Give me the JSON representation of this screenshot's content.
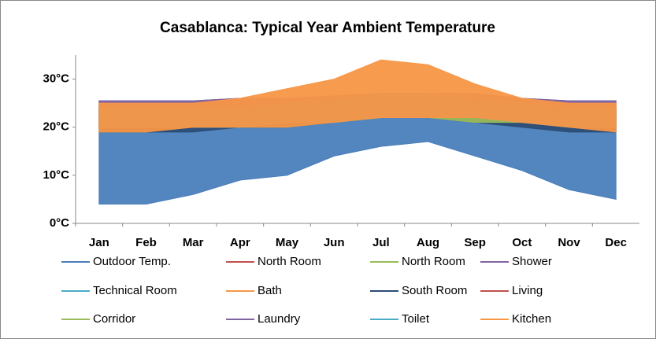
{
  "chart_data": {
    "type": "range",
    "title": "Casablanca: Typical Year Ambient Temperature",
    "categories": [
      "Jan",
      "Feb",
      "Mar",
      "Apr",
      "May",
      "Jun",
      "Jul",
      "Aug",
      "Sep",
      "Oct",
      "Nov",
      "Dec"
    ],
    "ylim": [
      0,
      35
    ],
    "yticks": [
      {
        "value": 0,
        "label": "0°C"
      },
      {
        "value": 10,
        "label": "10°C"
      },
      {
        "value": 20,
        "label": "20°C"
      },
      {
        "value": 30,
        "label": "30°C"
      }
    ],
    "series": [
      {
        "name": "Outdoor Temp.",
        "color": "#4a7ebb",
        "low": [
          4,
          4,
          6,
          9,
          10,
          14,
          16,
          17,
          14,
          11,
          7,
          5
        ],
        "high": [
          21,
          21,
          22,
          21,
          23,
          24,
          26,
          26,
          25,
          23,
          21,
          21
        ]
      },
      {
        "name": "North Room",
        "color": "#c0504d",
        "low": [
          20,
          20,
          20,
          20,
          21,
          22,
          23,
          23,
          22,
          21,
          20,
          20
        ],
        "high": [
          24,
          24,
          24,
          24,
          25,
          26,
          27,
          27,
          26,
          25,
          24,
          24
        ]
      },
      {
        "name": "North Room",
        "color": "#9bbb59",
        "low": [
          20,
          20,
          20,
          20,
          21,
          21,
          22,
          22,
          22,
          21,
          20,
          20
        ],
        "high": [
          24,
          24,
          24,
          24,
          25,
          26,
          27,
          27,
          26,
          25,
          24,
          24
        ]
      },
      {
        "name": "Shower",
        "color": "#8064a2",
        "low": [
          22,
          22,
          22,
          22,
          23,
          23,
          24,
          24,
          24,
          23,
          22,
          22
        ],
        "high": [
          25.5,
          25.5,
          25.5,
          26,
          26,
          26.5,
          27,
          27,
          27,
          26,
          25.5,
          25.5
        ]
      },
      {
        "name": "Technical Room",
        "color": "#4bacc6",
        "low": [
          20,
          20,
          20,
          20,
          21,
          21,
          22,
          22,
          22,
          21,
          20,
          20
        ],
        "high": [
          24,
          24,
          24,
          24,
          25,
          26,
          27,
          27,
          26,
          25,
          24,
          24
        ]
      },
      {
        "name": "Bath",
        "color": "#f79646",
        "low": [
          20,
          20,
          20,
          20,
          21,
          22,
          22,
          22,
          22,
          21,
          20,
          20
        ],
        "high": [
          24.5,
          24.5,
          24.5,
          25,
          25,
          26,
          27,
          27,
          26,
          25,
          24.5,
          24.5
        ]
      },
      {
        "name": "South Room",
        "color": "#2c4d75",
        "low": [
          19,
          19,
          19,
          20,
          20,
          21,
          22,
          22,
          21,
          20,
          19,
          19
        ],
        "high": [
          24,
          24,
          24,
          24,
          25,
          26,
          27,
          27,
          26,
          25,
          24,
          24
        ]
      },
      {
        "name": "Living",
        "color": "#c0504d",
        "low": [
          20,
          20,
          20,
          20,
          21,
          22,
          22,
          23,
          22,
          21,
          20,
          20
        ],
        "high": [
          24,
          24,
          24,
          24,
          25,
          26,
          27,
          27,
          26,
          25,
          24,
          24
        ]
      },
      {
        "name": "Corridor",
        "color": "#9bbb59",
        "low": [
          20,
          20,
          20,
          20,
          21,
          21,
          22,
          22,
          21,
          21,
          20,
          20
        ],
        "high": [
          24,
          24,
          24,
          24,
          25,
          26,
          27,
          27,
          26,
          25,
          24,
          24
        ]
      },
      {
        "name": "Laundry",
        "color": "#8064a2",
        "low": [
          22,
          22,
          22,
          22,
          23,
          23,
          24,
          24,
          24,
          23,
          22,
          22
        ],
        "high": [
          25.5,
          25.5,
          25.5,
          26,
          26,
          26.5,
          27,
          27,
          27,
          26,
          25.5,
          25.5
        ]
      },
      {
        "name": "Toilet",
        "color": "#4bacc6",
        "low": [
          20,
          20,
          20,
          20,
          21,
          21,
          22,
          22,
          22,
          21,
          20,
          20
        ],
        "high": [
          24,
          24,
          24,
          24,
          25,
          26,
          27,
          27,
          26,
          25,
          24,
          24
        ]
      },
      {
        "name": "Kitchen",
        "color": "#f79646",
        "low": [
          19,
          19,
          20,
          20,
          20,
          21,
          22,
          22,
          22,
          21,
          20,
          19
        ],
        "high": [
          25,
          25,
          25,
          26,
          28,
          30,
          34,
          33,
          29,
          26,
          25,
          25
        ]
      }
    ]
  }
}
